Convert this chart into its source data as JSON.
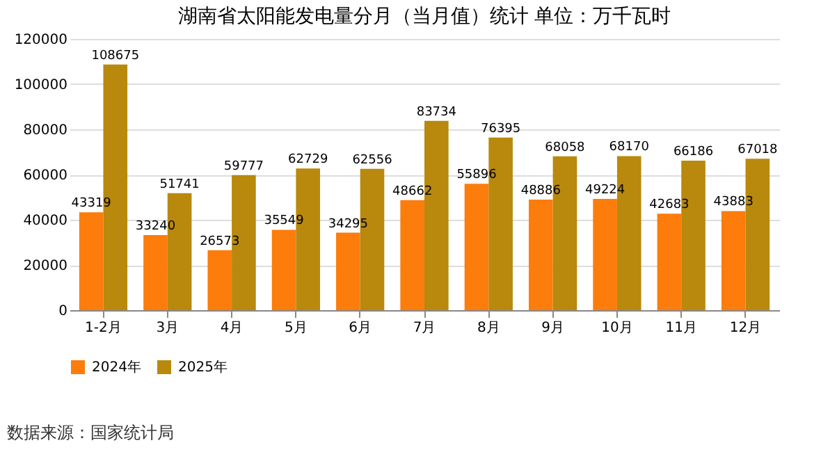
{
  "chart_data": {
    "type": "bar",
    "title": "湖南省太阳能发电量分月（当月值）统计  单位：万千瓦时",
    "categories": [
      "1-2月",
      "3月",
      "4月",
      "5月",
      "6月",
      "7月",
      "8月",
      "9月",
      "10月",
      "11月",
      "12月"
    ],
    "series": [
      {
        "name": "2024年",
        "color": "#fc7c0c",
        "values": [
          43319,
          33240,
          26573,
          35549,
          34295,
          48662,
          55896,
          48886,
          49224,
          42683,
          43883
        ]
      },
      {
        "name": "2025年",
        "color": "#b8890c",
        "values": [
          108675,
          51741,
          59777,
          62729,
          62556,
          83734,
          76395,
          68058,
          68170,
          66186,
          67018
        ]
      }
    ],
    "ylim": [
      0,
      120000
    ],
    "yticks": [
      0,
      20000,
      40000,
      60000,
      80000,
      100000,
      120000
    ],
    "grid": "y",
    "legend": "bottom",
    "data_labels": true,
    "annotations": [
      "数据来源：国家统计局"
    ]
  }
}
